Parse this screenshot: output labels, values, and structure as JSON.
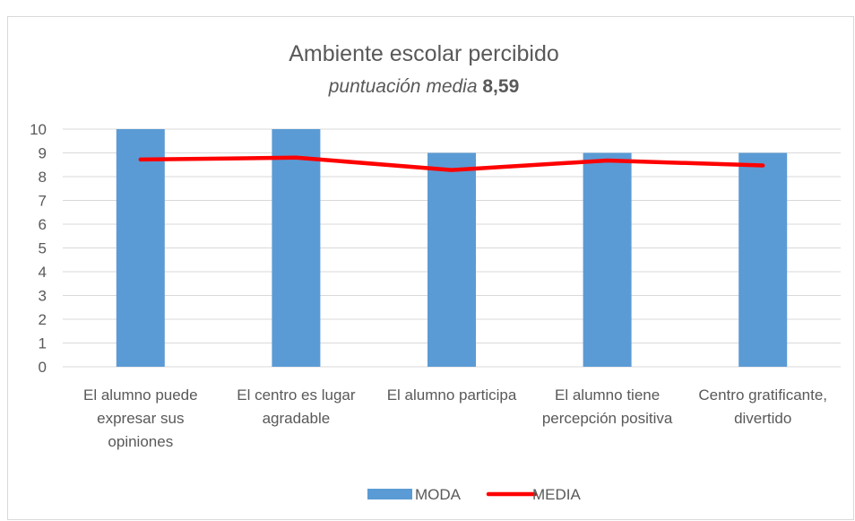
{
  "chart_data": {
    "type": "bar",
    "title": "Ambiente escolar percibido",
    "subtitle_label": "puntuación media",
    "subtitle_value": "8,59",
    "categories": [
      "El alumno puede expresar sus opiniones",
      "El centro es lugar agradable",
      "El alumno participa",
      "El alumno tiene percepción positiva",
      "Centro gratificante, divertido"
    ],
    "series": [
      {
        "name": "MODA",
        "type": "bar",
        "color": "#5b9bd5",
        "values": [
          10,
          10,
          9,
          9,
          9
        ]
      },
      {
        "name": "MEDIA",
        "type": "line",
        "color": "#ff0000",
        "values": [
          8.72,
          8.8,
          8.28,
          8.68,
          8.47
        ]
      }
    ],
    "ylim": [
      0,
      10
    ],
    "yticks": [
      0,
      1,
      2,
      3,
      4,
      5,
      6,
      7,
      8,
      9,
      10
    ],
    "grid": true,
    "legend": "bottom"
  }
}
